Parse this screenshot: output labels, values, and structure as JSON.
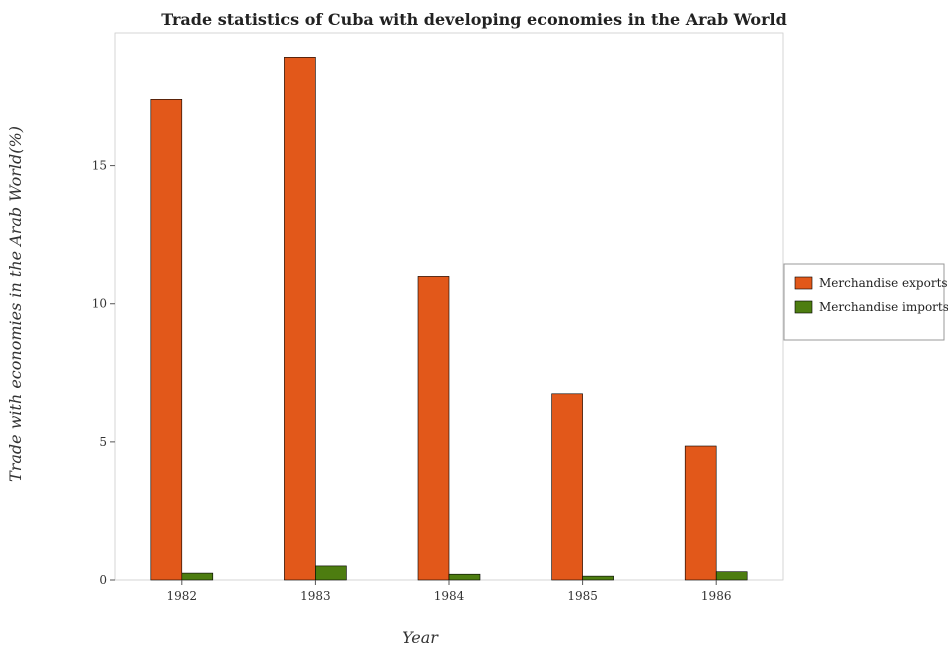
{
  "chart_data": {
    "type": "bar",
    "title": "Trade statistics of Cuba with developing economies in the Arab World",
    "xlabel": "Year",
    "ylabel": "Trade with economies in the Arab World(%)",
    "categories": [
      "1982",
      "1983",
      "1984",
      "1985",
      "1986"
    ],
    "series": [
      {
        "name": "Merchandise exports",
        "values": [
          17.4,
          18.92,
          10.99,
          6.74,
          4.85
        ],
        "color": "#e2581a"
      },
      {
        "name": "Merchandise imports",
        "values": [
          0.25,
          0.51,
          0.21,
          0.14,
          0.3
        ],
        "color": "#4d7d10"
      }
    ],
    "ylim": [
      0,
      19.8
    ],
    "yticks": [
      0,
      5,
      10,
      15
    ],
    "grid": false,
    "legend_position": "right"
  }
}
